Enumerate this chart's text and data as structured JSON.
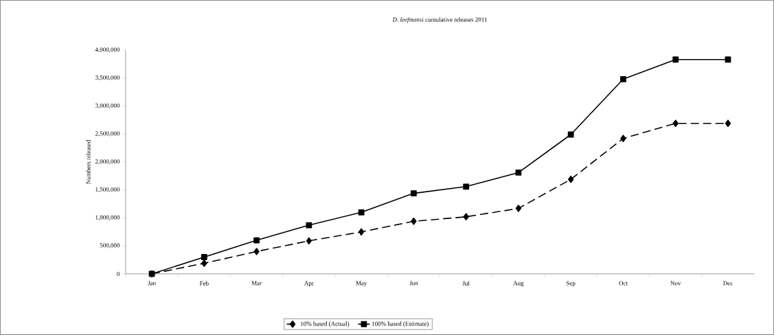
{
  "chart_data": {
    "type": "line",
    "title": "*D. leefmansi* cumulative releases 2011",
    "ylabel": "Numbers released",
    "categories": [
      "Jan",
      "Feb",
      "Mar",
      "Apr",
      "May",
      "Jun",
      "Jul",
      "Aug",
      "Sep",
      "Oct",
      "Nov",
      "Dec"
    ],
    "series": [
      {
        "name": "10% based (Actual)",
        "color": "#000000",
        "marker": "diamond",
        "line_style": "dashed",
        "values": [
          0,
          190000,
          400000,
          590000,
          750000,
          940000,
          1020000,
          1170000,
          1690000,
          2420000,
          2690000,
          2690000
        ]
      },
      {
        "name": "100% based (Estimate)",
        "color": "#000000",
        "marker": "square",
        "line_style": "solid",
        "values": [
          0,
          300000,
          600000,
          870000,
          1100000,
          1440000,
          1560000,
          1810000,
          2490000,
          3480000,
          3830000,
          3830000
        ]
      }
    ],
    "ylim": [
      0,
      4000000
    ],
    "yticks": [
      0,
      {
        "value": 500000,
        "label": "500,000"
      },
      {
        "value": 1000000,
        "label": "1,000,000"
      },
      {
        "value": 1500000,
        "label": "1,500,000"
      },
      {
        "value": 2000000,
        "label": "2,000,000"
      },
      {
        "value": 2500000,
        "label": "2,500,000"
      },
      {
        "value": 3000000,
        "label": "3,000,000"
      },
      {
        "value": 3500000,
        "label": "3,500,000"
      },
      {
        "value": 4000000,
        "label": "4,000,000"
      }
    ],
    "grid": false,
    "legend": "bottom"
  }
}
